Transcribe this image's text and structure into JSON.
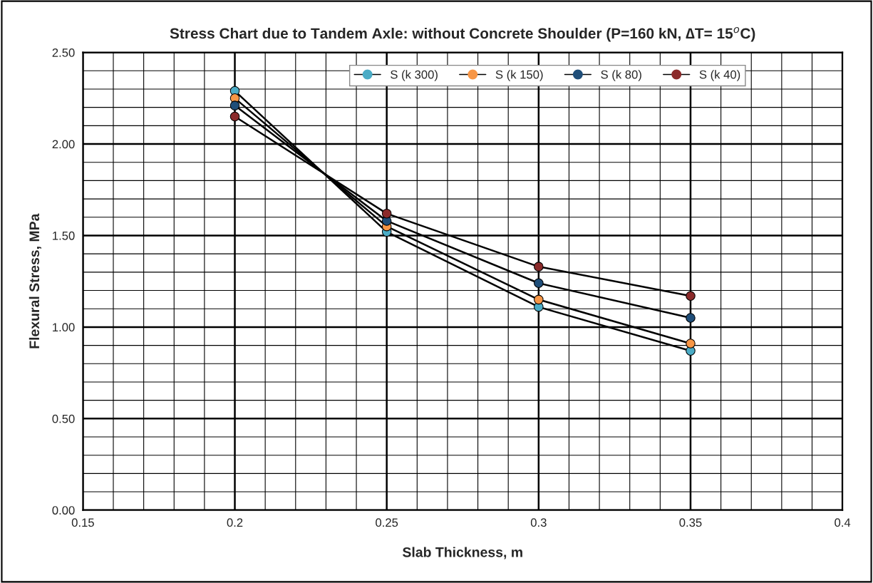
{
  "chart_data": {
    "type": "line",
    "title": "Stress Chart due to Tandem Axle: without Concrete Shoulder (P=160 kN, ∆T= 15$^{o}$C)",
    "xlabel": "Slab Thickness, m",
    "ylabel": "Flexural Stress, MPa",
    "x": [
      0.2,
      0.25,
      0.3,
      0.35
    ],
    "series": [
      {
        "name": "S (k 300)",
        "color": "#4bacc6",
        "values": [
          2.29,
          1.52,
          1.11,
          0.87
        ]
      },
      {
        "name": "S (k 150)",
        "color": "#f79646",
        "values": [
          2.25,
          1.55,
          1.15,
          0.91
        ]
      },
      {
        "name": "S (k 80)",
        "color": "#1f4e79",
        "values": [
          2.21,
          1.58,
          1.24,
          1.05
        ]
      },
      {
        "name": "S (k 40)",
        "color": "#8b2a2a",
        "values": [
          2.15,
          1.62,
          1.33,
          1.17
        ]
      }
    ],
    "xlim": [
      0.15,
      0.4
    ],
    "xticks": [
      0.15,
      0.2,
      0.25,
      0.3,
      0.35,
      0.4
    ],
    "ylim": [
      0,
      2.5
    ],
    "yticks": [
      {
        "value": 0,
        "label": "0.00"
      },
      {
        "value": 0.5,
        "label": "0.50"
      },
      {
        "value": 1,
        "label": "1.00"
      },
      {
        "value": 1.5,
        "label": "1.50"
      },
      {
        "value": 2,
        "label": "2.00"
      },
      {
        "value": 2.5,
        "label": "2.50"
      }
    ],
    "grid": true,
    "legend": "top right",
    "marker": "circle",
    "line_style": "solid"
  }
}
